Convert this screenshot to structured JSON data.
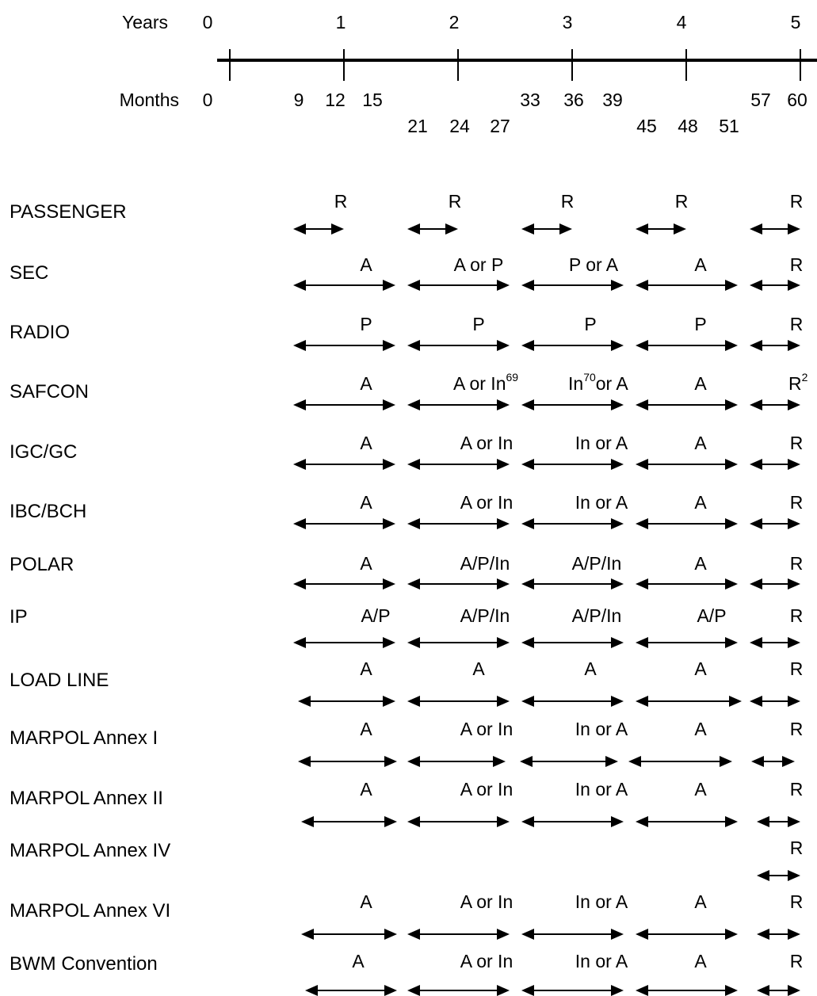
{
  "timeline": {
    "years_label": "Years",
    "months_label": "Months",
    "years": [
      "0",
      "1",
      "2",
      "3",
      "4",
      "5"
    ],
    "months_upper": [
      "0",
      "9",
      "12",
      "15",
      "33",
      "36",
      "39",
      "57",
      "60"
    ],
    "months_lower": [
      "21",
      "24",
      "27",
      "45",
      "48",
      "51"
    ]
  },
  "rows": [
    {
      "label": "PASSENGER",
      "cells": [
        "R",
        "R",
        "R",
        "R",
        "R"
      ]
    },
    {
      "label": "SEC",
      "cells": [
        "A",
        "A or P",
        "P or A",
        "A",
        "R"
      ]
    },
    {
      "label": "RADIO",
      "cells": [
        "P",
        "P",
        "P",
        "P",
        "R"
      ]
    },
    {
      "label": "SAFCON",
      "cells": [
        "A",
        "A or In",
        "In",
        "A",
        "R"
      ],
      "notes": {
        "c2_sup": "69",
        "c3_sup": "70",
        "c3_tail": "or A",
        "c5_sup": "2"
      }
    },
    {
      "label": "IGC/GC",
      "cells": [
        "A",
        "A or In",
        "In or A",
        "A",
        "R"
      ]
    },
    {
      "label": "IBC/BCH",
      "cells": [
        "A",
        "A or In",
        "In or A",
        "A",
        "R"
      ]
    },
    {
      "label": "POLAR",
      "cells": [
        "A",
        "A/P/In",
        "A/P/In",
        "A",
        "R"
      ]
    },
    {
      "label": "IP",
      "cells": [
        "A/P",
        "A/P/In",
        "A/P/In",
        "A/P",
        "R"
      ]
    },
    {
      "label": "LOAD LINE",
      "cells": [
        "A",
        "A",
        "A",
        "A",
        "R"
      ]
    },
    {
      "label": "MARPOL Annex I",
      "cells": [
        "A",
        "A or In",
        "In or A",
        "A",
        "R"
      ]
    },
    {
      "label": "MARPOL Annex II",
      "cells": [
        "A",
        "A or In",
        "In or A",
        "A",
        "R"
      ]
    },
    {
      "label": "MARPOL Annex IV",
      "cells": [
        "",
        "",
        "",
        "",
        "R"
      ]
    },
    {
      "label": "MARPOL Annex VI",
      "cells": [
        "A",
        "A or In",
        "In or A",
        "A",
        "R"
      ]
    },
    {
      "label": "BWM Convention",
      "cells": [
        "A",
        "A or In",
        "In or A",
        "A",
        "R"
      ]
    }
  ]
}
